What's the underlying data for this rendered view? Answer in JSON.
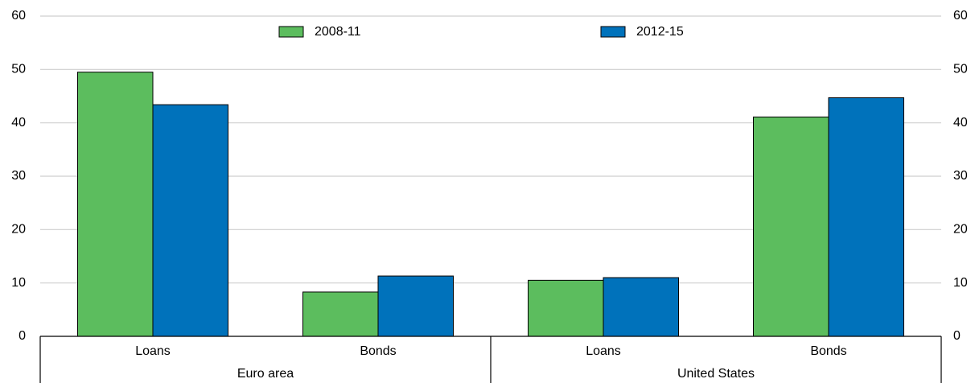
{
  "chart_data": {
    "type": "bar",
    "groups": [
      {
        "label": "Euro area",
        "categories": [
          "Loans",
          "Bonds"
        ]
      },
      {
        "label": "United States",
        "categories": [
          "Loans",
          "Bonds"
        ]
      }
    ],
    "series": [
      {
        "name": "2008-11",
        "color": "#5cbd5e",
        "values": [
          49.5,
          8.3,
          10.5,
          41.1
        ]
      },
      {
        "name": "2012-15",
        "color": "#0072bb",
        "values": [
          43.4,
          11.3,
          11.0,
          44.7
        ]
      }
    ],
    "ylim": [
      0,
      60
    ],
    "yticks": [
      0,
      10,
      20,
      30,
      40,
      50,
      60
    ],
    "y_axis_left_labels": [
      "0",
      "10",
      "20",
      "30",
      "40",
      "50",
      "60"
    ],
    "y_axis_right_labels": [
      "0",
      "10",
      "20",
      "30",
      "40",
      "50",
      "60"
    ],
    "grid": true,
    "legend_position": "top"
  }
}
